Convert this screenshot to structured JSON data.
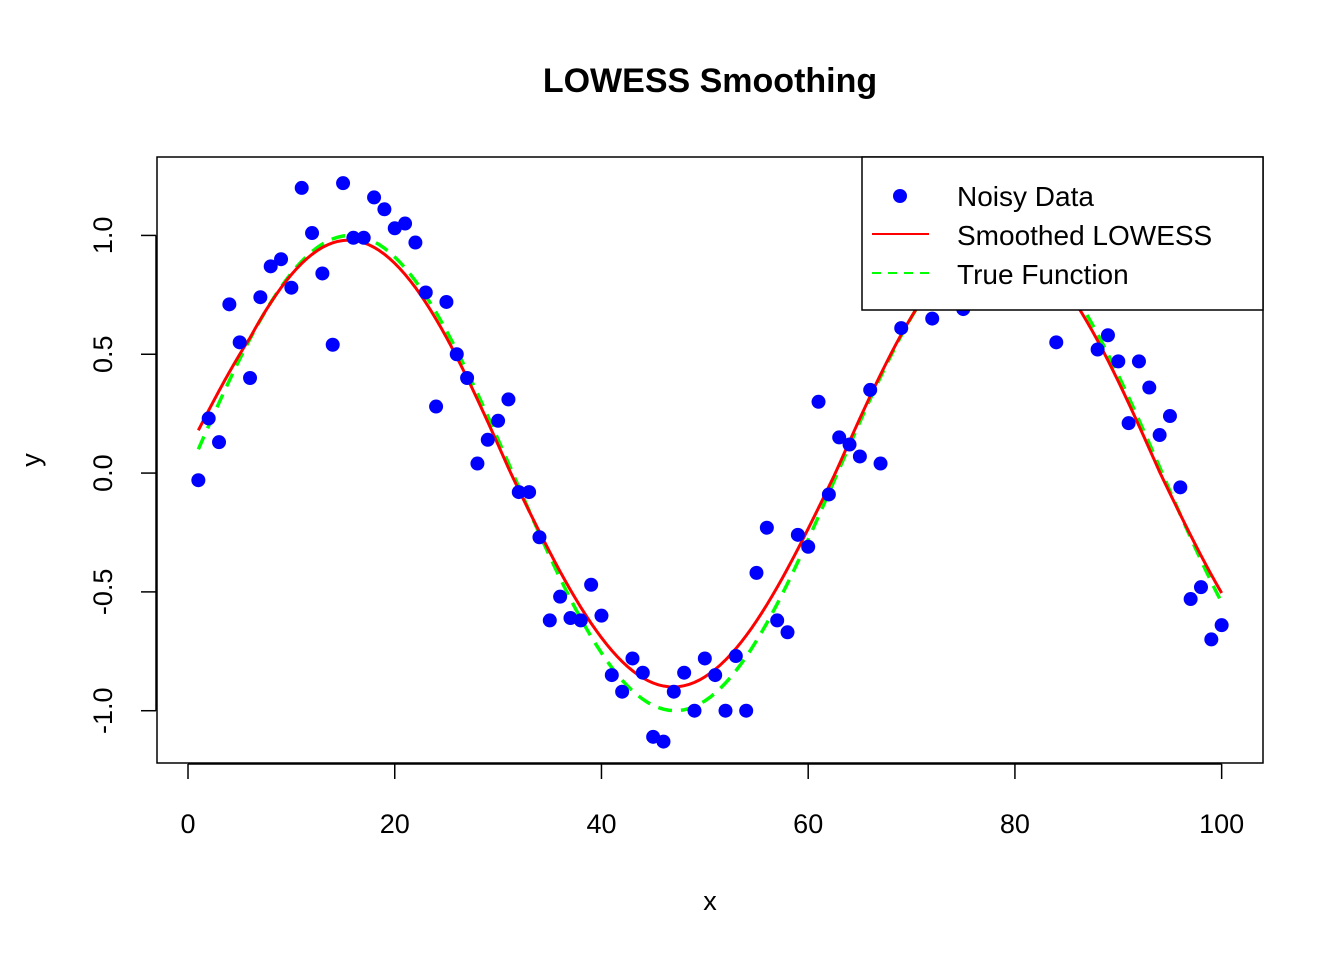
{
  "chart_data": {
    "type": "scatter",
    "title": "LOWESS Smoothing",
    "xlabel": "x",
    "ylabel": "y",
    "xlim": [
      -3,
      104
    ],
    "ylim": [
      -1.22,
      1.33
    ],
    "xticks": [
      "0",
      "20",
      "40",
      "60",
      "80",
      "100"
    ],
    "yticks": [
      "-1.0",
      "-0.5",
      "0.0",
      "0.5",
      "1.0"
    ],
    "grid": false,
    "legend_position": "top-right",
    "colors": {
      "points": "#0000ff",
      "smoothed": "#ff0000",
      "true": "#00ff00"
    },
    "series": [
      {
        "name": "Noisy Data",
        "kind": "points",
        "x": [
          1,
          2,
          3,
          4,
          5,
          6,
          7,
          8,
          9,
          10,
          11,
          12,
          13,
          14,
          15,
          16,
          17,
          18,
          19,
          20,
          21,
          22,
          23,
          24,
          25,
          26,
          27,
          28,
          29,
          30,
          31,
          32,
          33,
          34,
          35,
          36,
          37,
          38,
          39,
          40,
          41,
          42,
          43,
          44,
          45,
          46,
          47,
          48,
          49,
          50,
          51,
          52,
          53,
          54,
          55,
          56,
          57,
          58,
          59,
          60,
          61,
          62,
          63,
          64,
          65,
          66,
          67,
          69,
          72,
          75,
          84,
          88,
          89,
          90,
          91,
          92,
          93,
          94,
          95,
          96,
          97,
          98,
          99,
          100
        ],
        "y": [
          -0.03,
          0.23,
          0.13,
          0.71,
          0.55,
          0.4,
          0.74,
          0.87,
          0.9,
          0.78,
          1.2,
          1.01,
          0.84,
          0.54,
          1.22,
          0.99,
          0.99,
          1.16,
          1.11,
          1.03,
          1.05,
          0.97,
          0.76,
          0.28,
          0.72,
          0.5,
          0.4,
          0.04,
          0.14,
          0.22,
          0.31,
          -0.08,
          -0.08,
          -0.27,
          -0.62,
          -0.52,
          -0.61,
          -0.62,
          -0.47,
          -0.6,
          -0.85,
          -0.92,
          -0.78,
          -0.84,
          -1.11,
          -1.13,
          -0.92,
          -0.84,
          -1.0,
          -0.78,
          -0.85,
          -1.0,
          -0.77,
          -1.0,
          -0.42,
          -0.23,
          -0.62,
          -0.67,
          -0.26,
          -0.31,
          0.3,
          -0.09,
          0.15,
          0.12,
          0.07,
          0.35,
          0.04,
          0.61,
          0.65,
          0.69,
          0.55,
          0.52,
          0.58,
          0.47,
          0.21,
          0.47,
          0.36,
          0.16,
          0.24,
          -0.06,
          -0.53,
          -0.48,
          -0.7,
          -0.64
        ]
      },
      {
        "name": "Smoothed LOWESS",
        "kind": "line",
        "dash": "solid"
      },
      {
        "name": "True Function",
        "kind": "line",
        "dash": "dashed"
      }
    ]
  }
}
